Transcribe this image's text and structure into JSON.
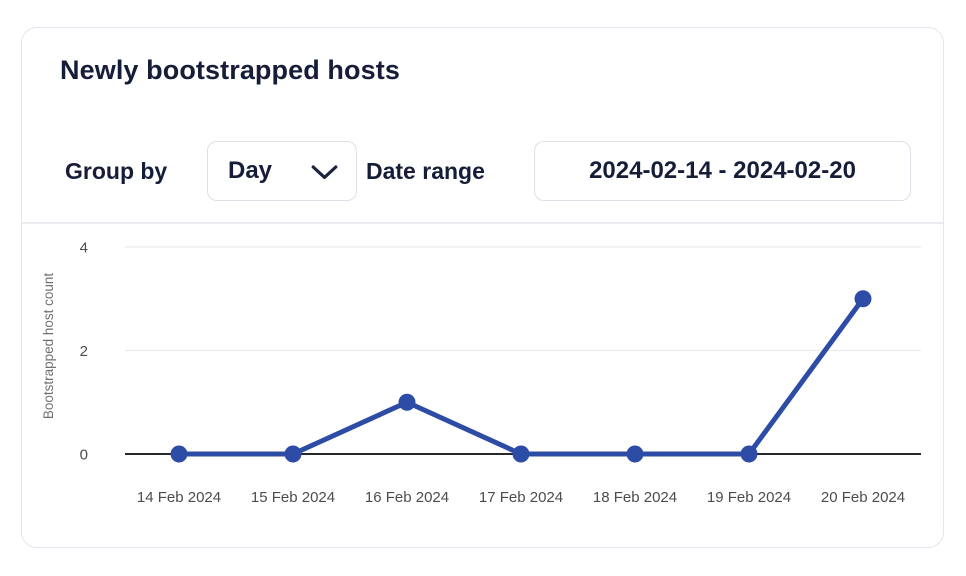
{
  "card": {
    "title": "Newly bootstrapped hosts",
    "controls": {
      "group_by_label": "Group by",
      "group_by_value": "Day",
      "date_range_label": "Date range",
      "date_range_value": "2024-02-14 - 2024-02-20"
    }
  },
  "colors": {
    "text_navy": "#151d38",
    "line_blue": "#2d4ca6",
    "axis_baseline": "#26282b",
    "gridline": "#ebebeb",
    "tick_label": "#4c4c4c",
    "axis_title": "#6f6f74",
    "card_border": "#e3e5ef"
  },
  "chart_data": {
    "type": "line",
    "categories": [
      "14 Feb 2024",
      "15 Feb 2024",
      "16 Feb 2024",
      "17 Feb 2024",
      "18 Feb 2024",
      "19 Feb 2024",
      "20 Feb 2024"
    ],
    "values": [
      0,
      0,
      1,
      0,
      0,
      0,
      3
    ],
    "title": "Newly bootstrapped hosts",
    "xlabel": "",
    "ylabel": "Bootstrapped host count",
    "ylim": [
      0,
      4
    ],
    "yticks": [
      0,
      2,
      4
    ],
    "grid": "horizontal",
    "legend": "none",
    "line_color": "#2d4ca6",
    "point_radius_px": 8.5
  }
}
